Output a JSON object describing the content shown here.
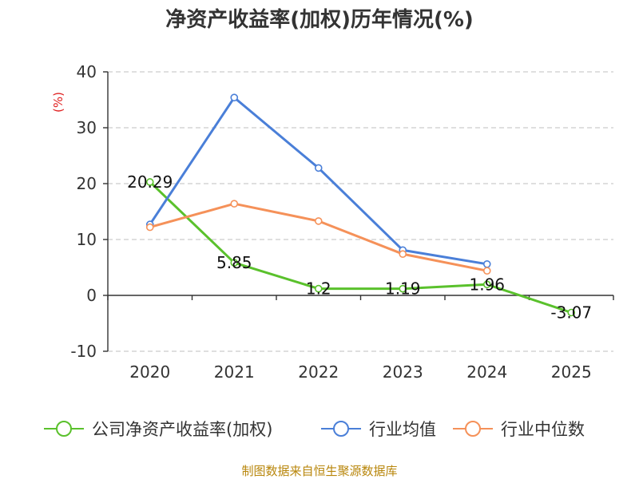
{
  "chart_data": {
    "type": "line",
    "title": "净资产收益率(加权)历年情况(%)",
    "ylabel": "(%)",
    "xlabel": "",
    "categories": [
      "2020",
      "2021",
      "2022",
      "2023",
      "2024",
      "2025"
    ],
    "ylim": [
      -10,
      40
    ],
    "yticks": [
      -10,
      0,
      10,
      20,
      30,
      40
    ],
    "grid": true,
    "legend_position": "bottom",
    "series": [
      {
        "name": "公司净资产收益率(加权)",
        "color": "#5ac12c",
        "values": [
          20.29,
          5.85,
          1.2,
          1.19,
          1.96,
          -3.07
        ],
        "labels": [
          "20.29",
          "5.85",
          "1.2",
          "1.19",
          "1.96",
          "-3.07"
        ]
      },
      {
        "name": "行业均值",
        "color": "#4a7fd8",
        "values": [
          12.7,
          35.4,
          22.8,
          8.1,
          5.6,
          null
        ]
      },
      {
        "name": "行业中位数",
        "color": "#f59159",
        "values": [
          12.2,
          16.4,
          13.3,
          7.4,
          4.4,
          null
        ]
      }
    ],
    "source": "制图数据来自恒生聚源数据库"
  }
}
